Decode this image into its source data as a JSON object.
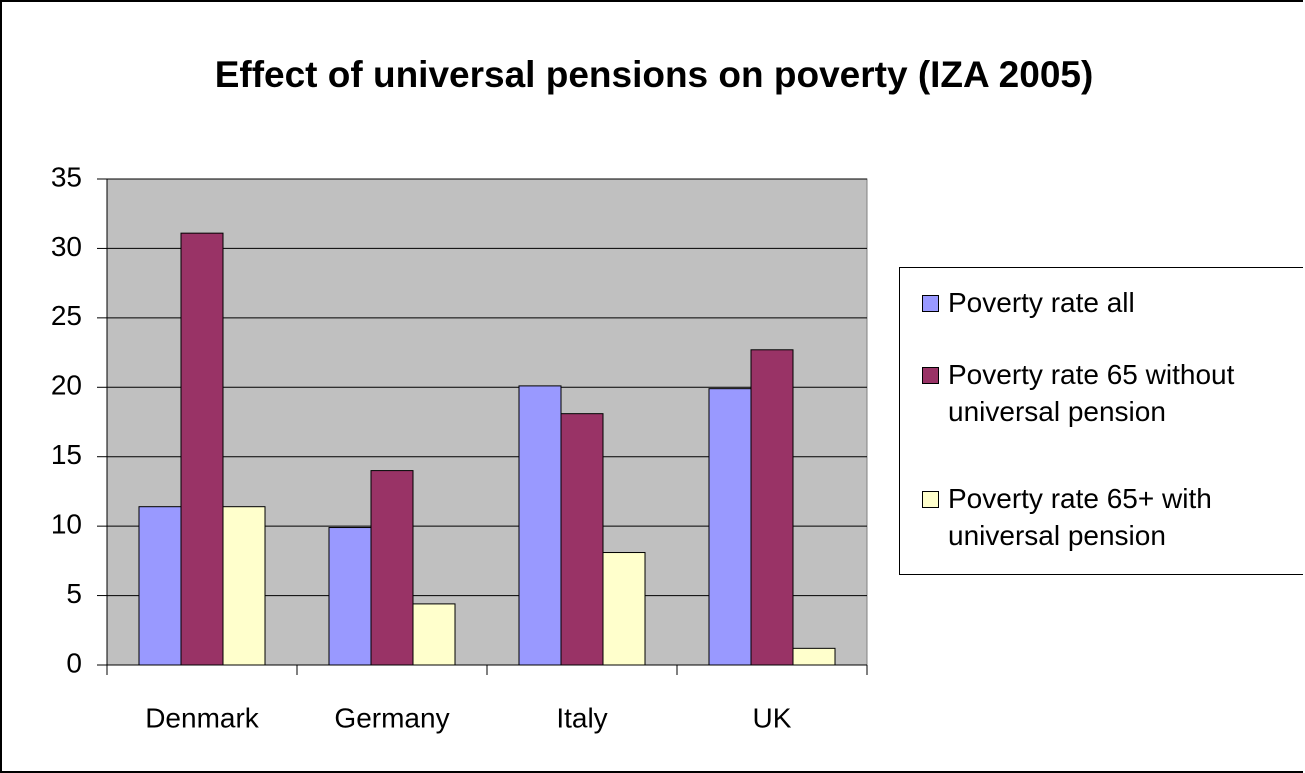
{
  "chart_data": {
    "type": "bar",
    "title": "Effect of universal pensions on poverty (IZA 2005)",
    "categories": [
      "Denmark",
      "Germany",
      "Italy",
      "UK"
    ],
    "series": [
      {
        "name": "Poverty rate all",
        "color": "#9999ff",
        "values": [
          11.4,
          9.9,
          20.1,
          19.9
        ]
      },
      {
        "name": "Poverty rate 65 without universal pension",
        "color": "#993366",
        "values": [
          31.1,
          14.0,
          18.1,
          22.7
        ]
      },
      {
        "name": "Poverty rate 65+ with universal pension",
        "color": "#ffffcc",
        "values": [
          11.4,
          4.4,
          8.1,
          1.2
        ]
      }
    ],
    "ylim": [
      0,
      35
    ],
    "yticks": [
      0,
      5,
      10,
      15,
      20,
      25,
      30,
      35
    ],
    "grid": true,
    "legend": "right",
    "plot_background": "#c0c0c0"
  }
}
